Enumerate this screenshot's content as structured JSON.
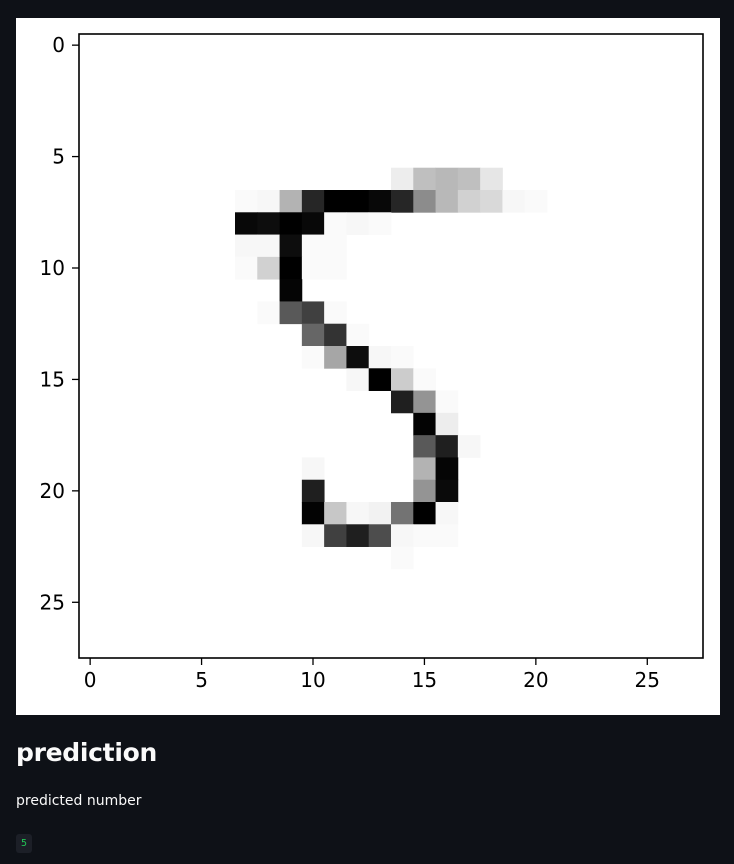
{
  "plot": {
    "chart_data": {
      "type": "heatmap",
      "colormap": "gray_r",
      "width": 28,
      "height": 28,
      "xlim": [
        -0.5,
        27.5
      ],
      "ylim": [
        27.5,
        -0.5
      ],
      "xticks": [
        0,
        5,
        10,
        15,
        20,
        25
      ],
      "yticks": [
        0,
        5,
        10,
        15,
        20,
        25
      ],
      "grid": false,
      "pixels": [
        {
          "row": 6,
          "cells": [
            [
              14,
              0.07
            ],
            [
              15,
              0.25
            ],
            [
              16,
              0.28
            ],
            [
              17,
              0.25
            ],
            [
              18,
              0.1
            ]
          ]
        },
        {
          "row": 7,
          "cells": [
            [
              7,
              0.02
            ],
            [
              8,
              0.03
            ],
            [
              9,
              0.3
            ],
            [
              10,
              0.85
            ],
            [
              11,
              1.0
            ],
            [
              12,
              1.0
            ],
            [
              13,
              0.97
            ],
            [
              14,
              0.85
            ],
            [
              15,
              0.45
            ],
            [
              16,
              0.28
            ],
            [
              17,
              0.18
            ],
            [
              18,
              0.15
            ],
            [
              19,
              0.03
            ],
            [
              20,
              0.02
            ]
          ]
        },
        {
          "row": 8,
          "cells": [
            [
              7,
              0.97
            ],
            [
              8,
              0.95
            ],
            [
              9,
              1.0
            ],
            [
              10,
              0.97
            ],
            [
              11,
              0.02
            ],
            [
              12,
              0.03
            ],
            [
              13,
              0.02
            ]
          ]
        },
        {
          "row": 9,
          "cells": [
            [
              7,
              0.03
            ],
            [
              8,
              0.03
            ],
            [
              9,
              0.95
            ],
            [
              10,
              0.02
            ],
            [
              11,
              0.02
            ]
          ]
        },
        {
          "row": 10,
          "cells": [
            [
              7,
              0.02
            ],
            [
              8,
              0.18
            ],
            [
              9,
              1.0
            ],
            [
              10,
              0.02
            ],
            [
              11,
              0.02
            ]
          ]
        },
        {
          "row": 11,
          "cells": [
            [
              9,
              0.98
            ]
          ]
        },
        {
          "row": 12,
          "cells": [
            [
              8,
              0.02
            ],
            [
              9,
              0.65
            ],
            [
              10,
              0.75
            ],
            [
              11,
              0.02
            ]
          ]
        },
        {
          "row": 13,
          "cells": [
            [
              10,
              0.6
            ],
            [
              11,
              0.8
            ],
            [
              12,
              0.02
            ]
          ]
        },
        {
          "row": 14,
          "cells": [
            [
              10,
              0.02
            ],
            [
              11,
              0.35
            ],
            [
              12,
              0.95
            ],
            [
              13,
              0.03
            ],
            [
              14,
              0.02
            ]
          ]
        },
        {
          "row": 15,
          "cells": [
            [
              12,
              0.03
            ],
            [
              13,
              1.0
            ],
            [
              14,
              0.2
            ],
            [
              15,
              0.02
            ]
          ]
        },
        {
          "row": 16,
          "cells": [
            [
              14,
              0.88
            ],
            [
              15,
              0.42
            ],
            [
              16,
              0.02
            ]
          ]
        },
        {
          "row": 17,
          "cells": [
            [
              15,
              0.99
            ],
            [
              16,
              0.07
            ]
          ]
        },
        {
          "row": 18,
          "cells": [
            [
              15,
              0.65
            ],
            [
              16,
              0.88
            ],
            [
              17,
              0.03
            ]
          ]
        },
        {
          "row": 19,
          "cells": [
            [
              10,
              0.03
            ],
            [
              15,
              0.3
            ],
            [
              16,
              0.98
            ]
          ]
        },
        {
          "row": 20,
          "cells": [
            [
              10,
              0.88
            ],
            [
              15,
              0.42
            ],
            [
              16,
              0.96
            ]
          ]
        },
        {
          "row": 21,
          "cells": [
            [
              10,
              0.99
            ],
            [
              11,
              0.22
            ],
            [
              12,
              0.03
            ],
            [
              13,
              0.05
            ],
            [
              14,
              0.55
            ],
            [
              15,
              1.0
            ],
            [
              16,
              0.03
            ]
          ]
        },
        {
          "row": 22,
          "cells": [
            [
              10,
              0.03
            ],
            [
              11,
              0.75
            ],
            [
              12,
              0.88
            ],
            [
              13,
              0.7
            ],
            [
              14,
              0.03
            ],
            [
              15,
              0.02
            ],
            [
              16,
              0.02
            ]
          ]
        },
        {
          "row": 23,
          "cells": [
            [
              14,
              0.02
            ]
          ]
        }
      ]
    }
  },
  "heading": "prediction",
  "caption": "predicted number",
  "prediction_value": "5"
}
